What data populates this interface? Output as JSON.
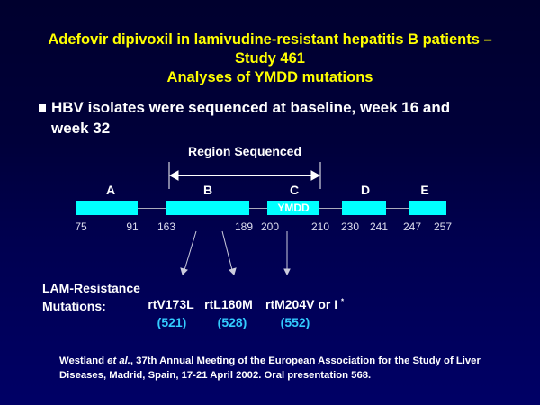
{
  "title": {
    "line1": "Adefovir dipivoxil in lamivudine-resistant hepatitis B patients –",
    "line2": "Study 461",
    "line3": "Analyses of YMDD mutations"
  },
  "bullet": {
    "line1": "HBV isolates were sequenced at baseline, week 16 and",
    "line2": "week 32"
  },
  "diagram": {
    "region_label": "Region Sequenced",
    "domains": [
      "A",
      "B",
      "C",
      "D",
      "E"
    ],
    "ymdd": "YMDD",
    "positions": [
      "75",
      "91",
      "163",
      "189",
      "200",
      "210",
      "230",
      "241",
      "247",
      "257"
    ]
  },
  "mutations": {
    "label1": "LAM-Resistance",
    "label2": "Mutations:",
    "items": [
      {
        "name": "rtV173L",
        "count": "(521)"
      },
      {
        "name": "rtL180M",
        "count": "(528)"
      },
      {
        "name": "rtM204V or I",
        "count": "(552)"
      }
    ],
    "asterisk": "*"
  },
  "citation": {
    "author": "Westland",
    "etal": "et al.",
    "line1_rest": ", 37th Annual Meeting of the European Association for the Study of Liver",
    "line2": "Diseases, Madrid, Spain, 17-21 April 2002. Oral presentation 568."
  },
  "colors": {
    "title": "#ffff00",
    "box": "#00ffff",
    "count": "#33ccff"
  }
}
